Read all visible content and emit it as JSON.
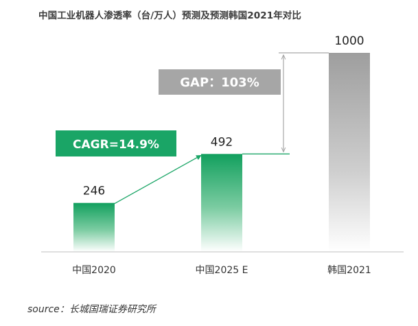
{
  "title": "中国工业机器人渗透率（台/万人）预测及预测韩国2021年对比",
  "source": "source：长城国瑞证券研究所",
  "chart_data": {
    "type": "bar",
    "title": "中国工业机器人渗透率（台/万人）预测及预测韩国2021年对比",
    "xlabel": "",
    "ylabel": "",
    "ylim": [
      0,
      1000
    ],
    "grid": false,
    "categories": [
      "中国2020",
      "中国2025 E",
      "韩国2021"
    ],
    "values": [
      246,
      492,
      1000
    ],
    "value_labels": [
      "246",
      "492",
      "1000"
    ],
    "bar_colors": [
      "#1aa566",
      "#1aa566",
      "#a8a8a8"
    ],
    "annotations": {
      "cagr": "CAGR=14.9%",
      "gap": "GAP：103%"
    }
  },
  "colors": {
    "accent": "#1aa566",
    "gray_bar": "#a8a8a8",
    "gap_box": "#a6a6a6",
    "cagr_box": "#1aa566"
  }
}
